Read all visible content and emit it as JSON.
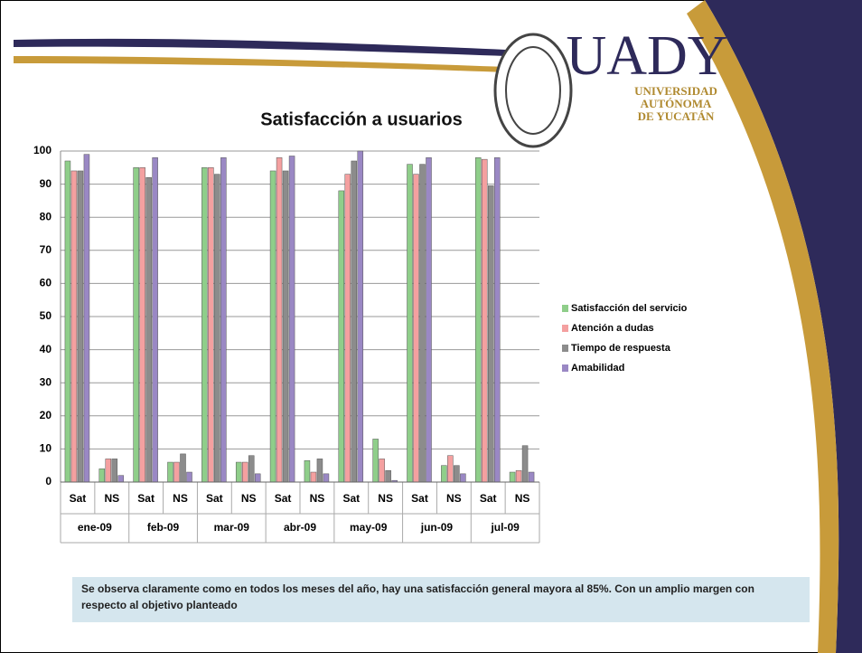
{
  "logo": {
    "name": "UADY",
    "lines": [
      "UNIVERSIDAD",
      "AUTÓNOMA",
      "DE YUCATÁN"
    ]
  },
  "chart_data": {
    "type": "bar",
    "title": "Satisfacción a usuarios",
    "categories": [
      "Sat",
      "NS",
      "Sat",
      "NS",
      "Sat",
      "NS",
      "Sat",
      "NS",
      "Sat",
      "NS",
      "Sat",
      "NS",
      "Sat",
      "NS"
    ],
    "groups": [
      "ene-09",
      "feb-09",
      "mar-09",
      "abr-09",
      "may-09",
      "jun-09",
      "jul-09"
    ],
    "series": [
      {
        "name": "Satisfacción del servicio",
        "color": "#8fce8a",
        "values": [
          97,
          4,
          95,
          6,
          95,
          6,
          94,
          6.5,
          88,
          13,
          96,
          5,
          98,
          3
        ]
      },
      {
        "name": "Atención a dudas",
        "color": "#f4a0a0",
        "values": [
          94,
          7,
          95,
          6,
          95,
          6,
          98,
          3,
          93,
          7,
          93,
          8,
          97.5,
          3.5
        ]
      },
      {
        "name": "Tiempo de respuesta",
        "color": "#8c8c8c",
        "values": [
          94,
          7,
          92,
          8.5,
          93,
          8,
          94,
          7,
          97,
          3.5,
          96,
          5,
          89.5,
          11
        ]
      },
      {
        "name": "Amabilidad",
        "color": "#9a88c4",
        "values": [
          99,
          2,
          98,
          3,
          98,
          2.5,
          98.5,
          2.5,
          100,
          0.5,
          98,
          2.5,
          98,
          3
        ]
      }
    ],
    "ylim": [
      0,
      100
    ],
    "yticks": [
      0,
      10,
      20,
      30,
      40,
      50,
      60,
      70,
      80,
      90,
      100
    ],
    "grid": true,
    "legend": "right"
  },
  "note": "Se observa claramente como en todos los meses del año, hay una satisfacción general mayora al 85%. Con un amplio margen con respecto al objetivo planteado"
}
